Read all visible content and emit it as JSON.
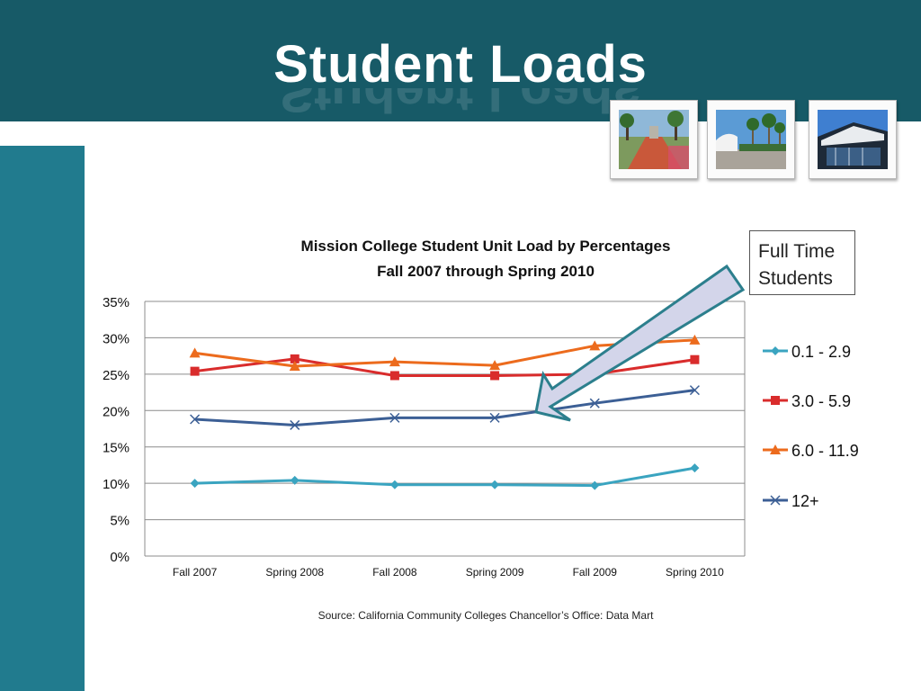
{
  "slide": {
    "title": "Student Loads",
    "callout": [
      "Full Time",
      "Students"
    ],
    "source": "Source: California Community Colleges Chancellor’s Office: Data Mart",
    "photos": [
      "campus-walkway-photo",
      "campus-palms-photo",
      "campus-building-photo"
    ],
    "colors": {
      "header": "#175a67",
      "left_bar": "#217b8e",
      "arrow_fill": "#d3d5ea",
      "arrow_stroke": "#2c7f8d"
    }
  },
  "chart_data": {
    "type": "line",
    "title": [
      "Mission College Student Unit Load by Percentages",
      "Fall 2007 through Spring 2010"
    ],
    "categories": [
      "Fall 2007",
      "Spring 2008",
      "Fall 2008",
      "Spring 2009",
      "Fall 2009",
      "Spring 2010"
    ],
    "ylim": [
      0,
      35
    ],
    "yticks": [
      "0%",
      "5%",
      "10%",
      "15%",
      "20%",
      "25%",
      "30%",
      "35%"
    ],
    "grid": true,
    "legend_position": "right",
    "series": [
      {
        "name": "0.1 - 2.9",
        "values": [
          10.0,
          10.4,
          9.8,
          9.8,
          9.7,
          12.1
        ],
        "color": "#3aa4c0",
        "marker": "diamond"
      },
      {
        "name": "3.0 - 5.9",
        "values": [
          25.4,
          27.1,
          24.8,
          24.8,
          25.0,
          27.0
        ],
        "color": "#d92c2c",
        "marker": "square"
      },
      {
        "name": "6.0 - 11.9",
        "values": [
          27.9,
          26.1,
          26.7,
          26.2,
          28.9,
          29.7
        ],
        "color": "#ec6b1d",
        "marker": "triangle"
      },
      {
        "name": "12+",
        "values": [
          18.8,
          18.0,
          19.0,
          19.0,
          21.0,
          22.8
        ],
        "color": "#3c5f95",
        "marker": "x"
      }
    ]
  }
}
